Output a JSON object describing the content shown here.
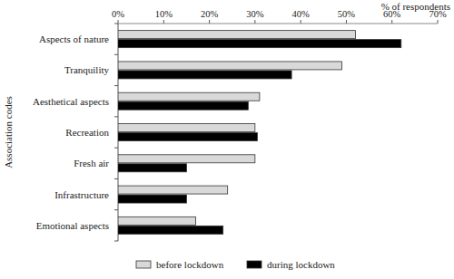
{
  "chart_data": {
    "type": "bar",
    "orientation": "horizontal",
    "x_label": "% of respondents",
    "y_label": "Association codes",
    "categories": [
      "Aspects of nature",
      "Tranquility",
      "Aesthetical aspects",
      "Recreation",
      "Fresh air",
      "Infrastructure",
      "Emotional aspects"
    ],
    "series": [
      {
        "name": "before lockdown",
        "color": "#d9d9d9",
        "values": [
          52,
          49,
          31,
          30,
          30,
          24,
          17
        ]
      },
      {
        "name": "during lockdown",
        "color": "#000000",
        "values": [
          62,
          38,
          28.5,
          30.5,
          15,
          15,
          23
        ]
      }
    ],
    "xlim": [
      0,
      70
    ],
    "xticks": [
      {
        "value": 0,
        "label": "0%"
      },
      {
        "value": 10,
        "label": "10%"
      },
      {
        "value": 20,
        "label": "20%"
      },
      {
        "value": 30,
        "label": "30%"
      },
      {
        "value": 40,
        "label": "40%"
      },
      {
        "value": 50,
        "label": "50%"
      },
      {
        "value": 60,
        "label": "60%"
      },
      {
        "value": 70,
        "label": "70%"
      }
    ],
    "grid": false,
    "legend": "bottom"
  }
}
